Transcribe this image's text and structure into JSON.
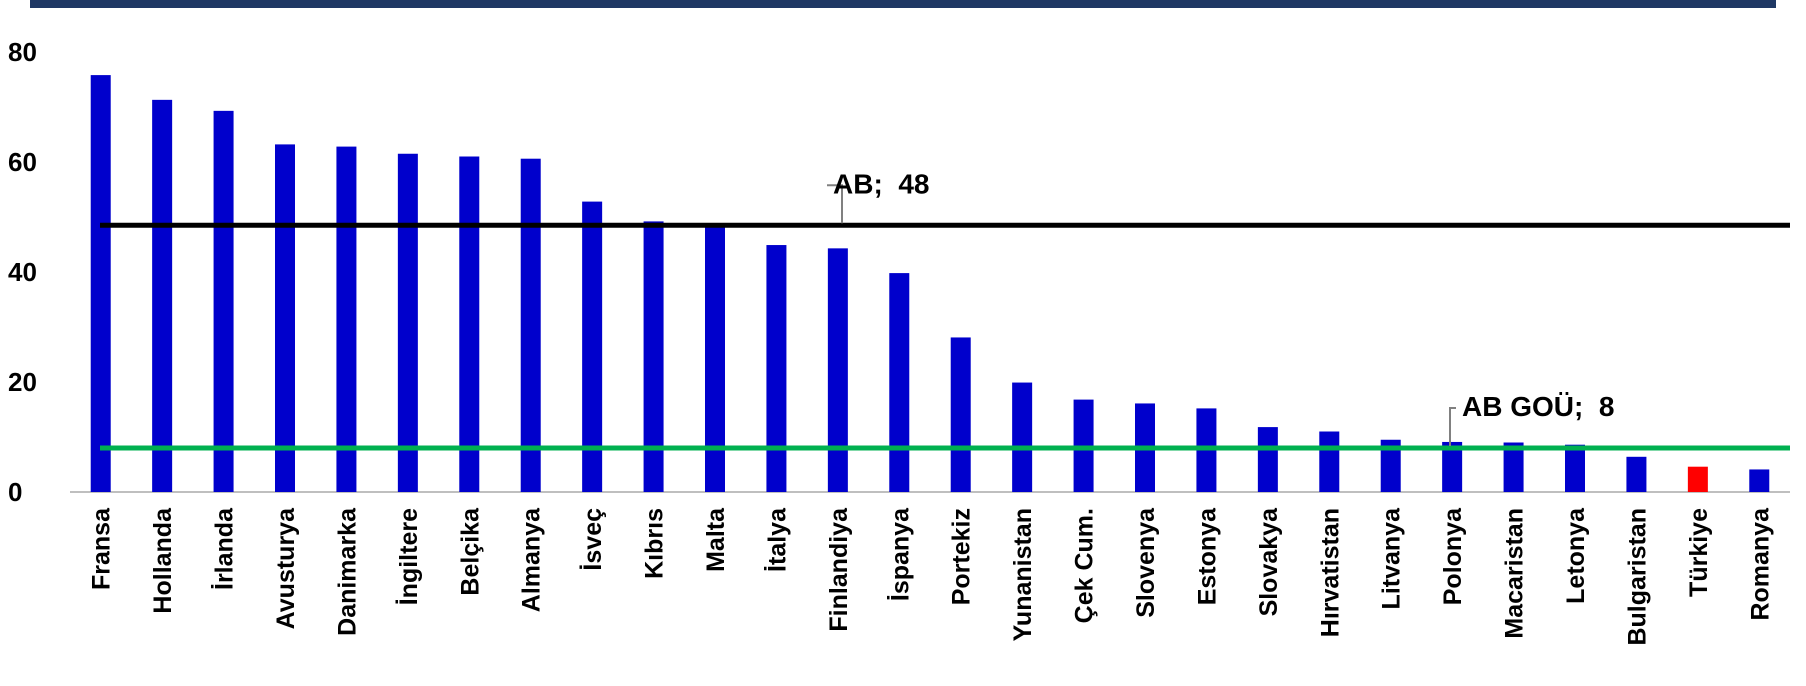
{
  "chart_data": {
    "type": "bar",
    "categories": [
      "Fransa",
      "Hollanda",
      "İrlanda",
      "Avusturya",
      "Danimarka",
      "İngiltere",
      "Belçika",
      "Almanya",
      "İsveç",
      "Kıbrıs",
      "Malta",
      "İtalya",
      "Finlandiya",
      "İspanya",
      "Portekiz",
      "Yunanistan",
      "Çek Cum.",
      "Slovenya",
      "Estonya",
      "Slovakya",
      "Hırvatistan",
      "Litvanya",
      "Polonya",
      "Macaristan",
      "Letonya",
      "Bulgaristan",
      "Türkiye",
      "Romanya"
    ],
    "values": [
      75.8,
      71.3,
      69.3,
      63.2,
      62.8,
      61.5,
      61.0,
      60.6,
      52.8,
      49.2,
      48.8,
      44.9,
      44.3,
      39.8,
      28.1,
      19.9,
      16.8,
      16.1,
      15.2,
      11.8,
      11.0,
      9.5,
      9.1,
      9.0,
      8.6,
      6.4,
      4.6,
      4.1
    ],
    "highlight_category": "Türkiye",
    "bar_color": "#0000cc",
    "highlight_color": "#ff0000",
    "ylim": [
      0,
      80
    ],
    "yticks": [
      "0",
      "20",
      "40",
      "60",
      "80"
    ],
    "grid": false,
    "reference_lines": [
      {
        "label": "AB;  48",
        "value": 48.5,
        "color": "#000000"
      },
      {
        "label": "AB GOÜ;  8",
        "value": 8,
        "color": "#00b050"
      }
    ]
  },
  "colors": {
    "top_bar": "#1f3864",
    "axis": "#bfbfbf"
  }
}
